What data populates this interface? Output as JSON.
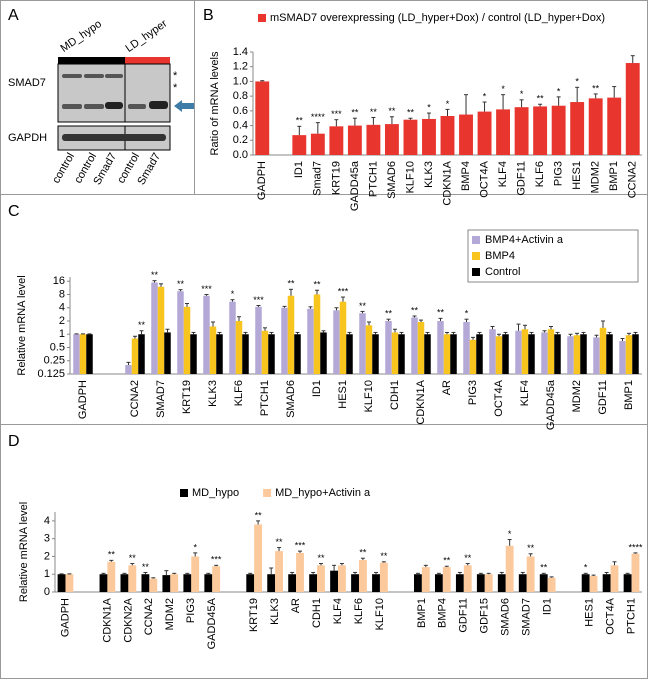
{
  "panel_labels": [
    "A",
    "B",
    "C",
    "D"
  ],
  "blot": {
    "groups": [
      "MD_hypo",
      "LD_hyper"
    ],
    "rows": [
      "SMAD7",
      "GAPDH"
    ],
    "asterisks": [
      "*",
      "*"
    ],
    "lanes": [
      "control",
      "control",
      "Smad7",
      "control",
      "Smad7"
    ]
  },
  "chart_data": [
    {
      "type": "bar",
      "y_label": "Ratio of mRNA  levels",
      "legend": "top",
      "categories": [
        "GADPH",
        null,
        "ID1",
        "Smad7",
        "KRT19",
        "GADD45a",
        "PTCH1",
        "SMAD6",
        "KLF10",
        "KLK3",
        "CDKN1A",
        "BMP4",
        "OCT4A",
        "KLF4",
        "GDF11",
        "KLF6",
        "PIG3",
        "HES1",
        "MDM2",
        "BMP1",
        "CCNA2"
      ],
      "series": [
        {
          "name": "mSMAD7 overexpressing (LD_hyper+Dox) / control (LD_hyper+Dox)",
          "color": "#e8362f",
          "values": [
            1.0,
            null,
            0.27,
            0.29,
            0.39,
            0.4,
            0.41,
            0.42,
            0.48,
            0.49,
            0.53,
            0.55,
            0.59,
            0.62,
            0.65,
            0.66,
            0.67,
            0.72,
            0.77,
            0.78,
            1.25
          ],
          "errors": [
            0.01,
            null,
            0.12,
            0.15,
            0.09,
            0.1,
            0.1,
            0.1,
            0.02,
            0.08,
            0.09,
            0.27,
            0.13,
            0.2,
            0.1,
            0.03,
            0.12,
            0.2,
            0.06,
            0.15,
            0.1
          ]
        }
      ],
      "significance": [
        null,
        null,
        "**",
        "****",
        "***",
        "**",
        "**",
        "**",
        "**",
        "*",
        "*",
        null,
        "*",
        "*",
        "*",
        "**",
        "*",
        "*",
        "**",
        null,
        null
      ],
      "ylim": [
        0,
        1.4
      ],
      "yticks": [
        {
          "value": 0,
          "label": "0.0"
        },
        0.2,
        0.4,
        0.6,
        0.8,
        {
          "value": 1,
          "label": "1.0"
        },
        1.2,
        1.4
      ]
    },
    {
      "type": "bar",
      "y_label": "Relative mRNA level",
      "legend": "upper right",
      "log_scale": true,
      "categories": [
        "GADPH",
        null,
        "CCNA2",
        "SMAD7",
        "KRT19",
        "KLK3",
        "KLF6",
        "PTCH1",
        "SMAD6",
        "ID1",
        "HES1",
        "KLF10",
        "CDH1",
        "CDKN1A",
        "AR",
        "PIG3",
        "OCT4A",
        "KLF4",
        "GADD45a",
        "MDM2",
        "GDF11",
        "BMP1"
      ],
      "series": [
        {
          "name": "BMP4+Activin a",
          "color": "#b4a9d6",
          "values": [
            1,
            null,
            0.2,
            15,
            9.5,
            7.5,
            5.5,
            4.2,
            4.0,
            3.8,
            3.5,
            3.0,
            2.0,
            2.4,
            2.0,
            1.9,
            1.3,
            1.2,
            1.1,
            0.9,
            0.85,
            0.7
          ],
          "errors": [
            0.02,
            null,
            0.03,
            1.5,
            0.8,
            0.5,
            0.6,
            0.3,
            0.3,
            0.4,
            0.5,
            0.3,
            0.2,
            0.2,
            0.3,
            0.3,
            0.2,
            0.5,
            0.1,
            0.1,
            0.1,
            0.1
          ]
        },
        {
          "name": "BMP4",
          "color": "#f7c51e",
          "values": [
            1,
            null,
            0.8,
            12,
            4.2,
            1.5,
            2.0,
            1.2,
            7.5,
            8.0,
            5.5,
            1.6,
            1.1,
            1.9,
            1.0,
            0.75,
            0.9,
            1.3,
            1.3,
            0.95,
            1.4,
            0.95
          ],
          "errors": [
            0.02,
            null,
            0.1,
            2.0,
            0.8,
            0.4,
            0.5,
            0.2,
            3.0,
            2.0,
            1.5,
            0.3,
            0.2,
            0.2,
            0.1,
            0.1,
            0.1,
            0.3,
            0.2,
            0.1,
            0.6,
            0.1
          ]
        },
        {
          "name": "Control",
          "color": "#000000",
          "values": [
            1,
            null,
            1.0,
            1.1,
            1.0,
            1.0,
            1.0,
            1.0,
            1.0,
            1.1,
            1.0,
            1.0,
            1.0,
            1.0,
            1.0,
            1.0,
            1.0,
            1.0,
            1.0,
            1.0,
            1.0,
            1.0
          ],
          "errors": [
            0.02,
            null,
            0.2,
            0.2,
            0.1,
            0.1,
            0.1,
            0.1,
            0.1,
            0.1,
            0.1,
            0.1,
            0.1,
            0.1,
            0.1,
            0.1,
            0.1,
            0.1,
            0.1,
            0.1,
            0.1,
            0.1
          ]
        }
      ],
      "significance": [
        null,
        null,
        "**",
        "**",
        "**",
        "***",
        "*",
        "***",
        "**",
        "**",
        "***",
        "**",
        "**",
        "**",
        "**",
        "*",
        null,
        null,
        null,
        null,
        null,
        null
      ],
      "ylim": [
        0.125,
        20
      ],
      "yticks": [
        0.125,
        0.25,
        0.5,
        1,
        2,
        4,
        8,
        16
      ]
    },
    {
      "type": "bar",
      "y_label": "Relative mRNA level",
      "legend": "top",
      "categories": [
        "GADPH",
        null,
        "CDKN1A",
        "CDKN2A",
        "CCNA2",
        "MDM2",
        "PIG3",
        "GADD45A",
        null,
        "KRT19",
        "KLK3",
        "AR",
        "CDH1",
        "KLF4",
        "KLF6",
        "KLF10",
        null,
        "BMP1",
        "BMP4",
        "GDF11",
        "GDF15",
        "SMAD6",
        "SMAD7",
        "ID1",
        null,
        "HES1",
        "OCT4A",
        "PTCH1"
      ],
      "series": [
        {
          "name": "MD_hypo",
          "color": "#000000",
          "values": [
            1,
            null,
            1,
            1,
            1,
            0.95,
            1,
            1,
            null,
            1,
            1,
            1,
            1,
            1.2,
            1,
            1,
            null,
            1,
            1,
            1,
            1,
            1,
            1,
            1,
            null,
            1,
            1,
            1
          ],
          "errors": [
            0.02,
            null,
            0.05,
            0.05,
            0.1,
            0.25,
            0.05,
            0.05,
            null,
            0.05,
            0.35,
            0.1,
            0.1,
            0.3,
            0.1,
            0.1,
            null,
            0.05,
            0.05,
            0.1,
            0.05,
            0.1,
            0.1,
            0.05,
            null,
            0.05,
            0.1,
            0.05
          ]
        },
        {
          "name": "MD_hypo+Activin a",
          "color": "#fbc99b",
          "values": [
            1,
            null,
            1.7,
            1.5,
            0.75,
            1.0,
            2.0,
            1.45,
            null,
            3.8,
            2.3,
            2.2,
            1.5,
            1.5,
            1.8,
            1.65,
            null,
            1.4,
            1.4,
            1.5,
            1.0,
            2.6,
            2.0,
            0.8,
            null,
            0.9,
            1.5,
            2.15
          ],
          "errors": [
            0.02,
            null,
            0.08,
            0.1,
            0.05,
            0.05,
            0.2,
            0.05,
            null,
            0.2,
            0.2,
            0.1,
            0.1,
            0.1,
            0.1,
            0.05,
            null,
            0.1,
            0.05,
            0.1,
            0.05,
            0.35,
            0.15,
            0.05,
            null,
            0.05,
            0.2,
            0.05
          ]
        }
      ],
      "significance": [
        null,
        null,
        "**",
        "**",
        "**",
        null,
        "*",
        "***",
        null,
        "**",
        "**",
        "***",
        "**",
        null,
        "**",
        "**",
        null,
        null,
        "**",
        "**",
        null,
        "*",
        "**",
        "**",
        null,
        "*",
        null,
        "****"
      ],
      "ylim": [
        0,
        4.5
      ],
      "yticks": [
        0,
        1,
        2,
        3,
        4
      ]
    }
  ]
}
